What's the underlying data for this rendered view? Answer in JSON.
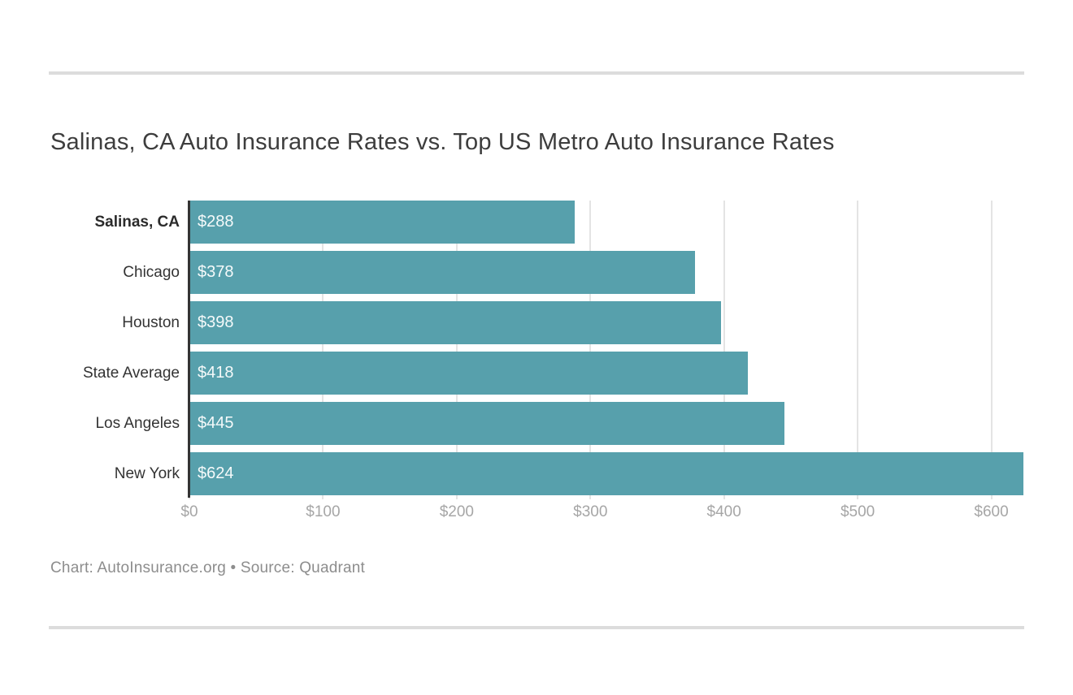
{
  "title": "Salinas, CA Auto Insurance Rates vs. Top US Metro Auto Insurance Rates",
  "chart_data": {
    "type": "bar",
    "orientation": "horizontal",
    "title": "Salinas, CA Auto Insurance Rates vs. Top US Metro Auto Insurance Rates",
    "categories": [
      "Salinas, CA",
      "Chicago",
      "Houston",
      "State Average",
      "Los Angeles",
      "New York"
    ],
    "values": [
      288,
      378,
      398,
      418,
      445,
      624
    ],
    "value_labels": [
      "$288",
      "$378",
      "$398",
      "$418",
      "$445",
      "$624"
    ],
    "highlight_category": "Salinas, CA",
    "xlabel": "",
    "ylabel": "",
    "xlim": [
      0,
      624
    ],
    "x_ticks": [
      0,
      100,
      200,
      300,
      400,
      500,
      600
    ],
    "x_tick_labels": [
      "$0",
      "$100",
      "$200",
      "$300",
      "$400",
      "$500",
      "$600"
    ],
    "grid": true,
    "legend_position": "none",
    "bar_color": "#57a0ac",
    "axis_color": "#333333",
    "gridline_color": "#e4e4e4"
  },
  "footer": {
    "caption": "Chart: AutoInsurance.org • Source: Quadrant"
  }
}
